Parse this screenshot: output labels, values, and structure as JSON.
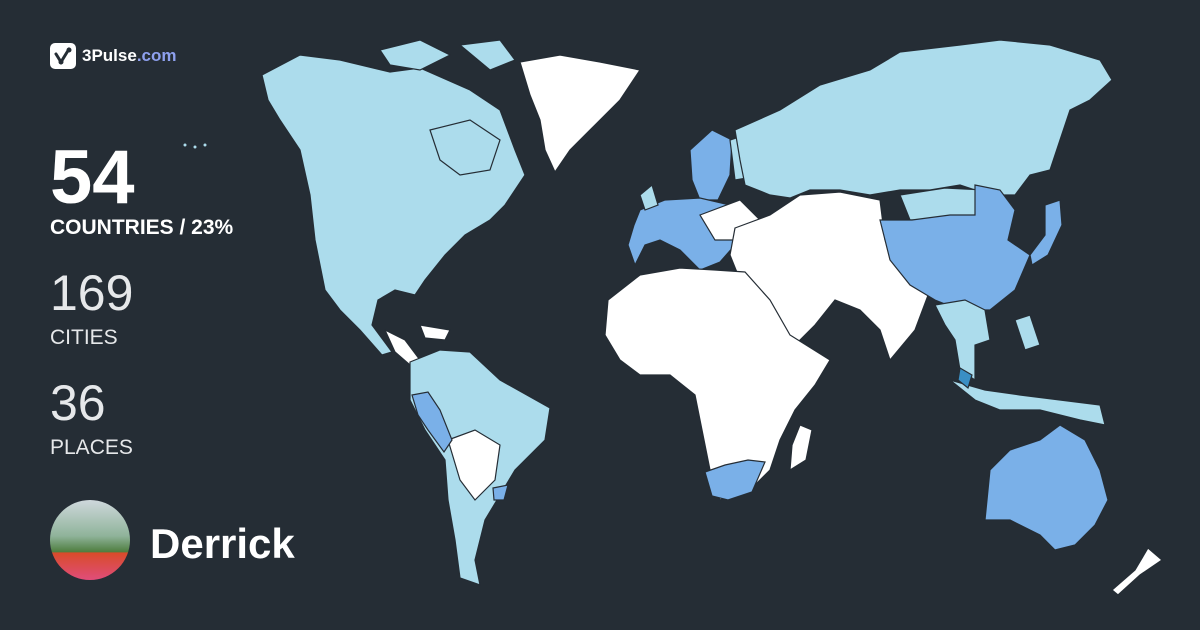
{
  "brand": {
    "name": "3Pulse",
    "suffix": ".com"
  },
  "stats": {
    "countries": "54",
    "countries_label": "COUNTRIES / 23%",
    "cities": "169",
    "cities_label": "CITIES",
    "places": "36",
    "places_label": "PLACES"
  },
  "user": {
    "name": "Derrick"
  },
  "map": {
    "colors": {
      "background": "#252d35",
      "visited": "#7ab0e8",
      "region_visited": "#acdcec",
      "unvisited": "#ffffff",
      "highlight": "#3a8fc4"
    }
  }
}
